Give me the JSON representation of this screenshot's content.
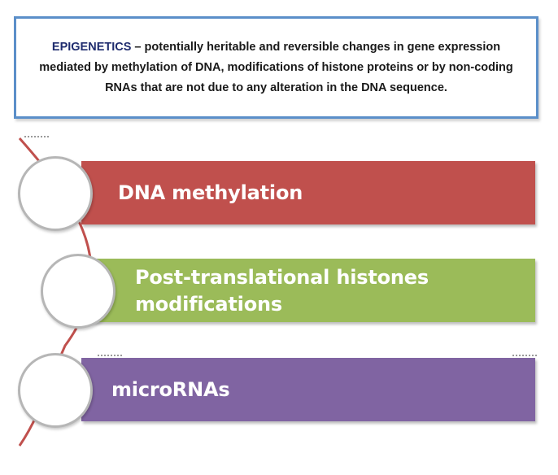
{
  "definition": {
    "term": "EPIGENETICS",
    "text": " – potentially heritable and reversible changes in gene expression mediated by methylation of DNA, modifications of histone proteins or by non-coding RNAs that are not due to any alteration in the DNA sequence."
  },
  "items": [
    {
      "label": "DNA methylation",
      "color": "#c0504d",
      "circle_border": "#c0504d"
    },
    {
      "label_line1": "Post-translational histones",
      "label_line2": "modifications",
      "color": "#9bbb59",
      "circle_border": "#9bbb59"
    },
    {
      "label": "microRNAs",
      "color": "#8064a2",
      "circle_border": "#8064a2"
    }
  ],
  "colors": {
    "box_border": "#5b8fc9",
    "term": "#1f2c6e",
    "connector": "#c0504d"
  }
}
